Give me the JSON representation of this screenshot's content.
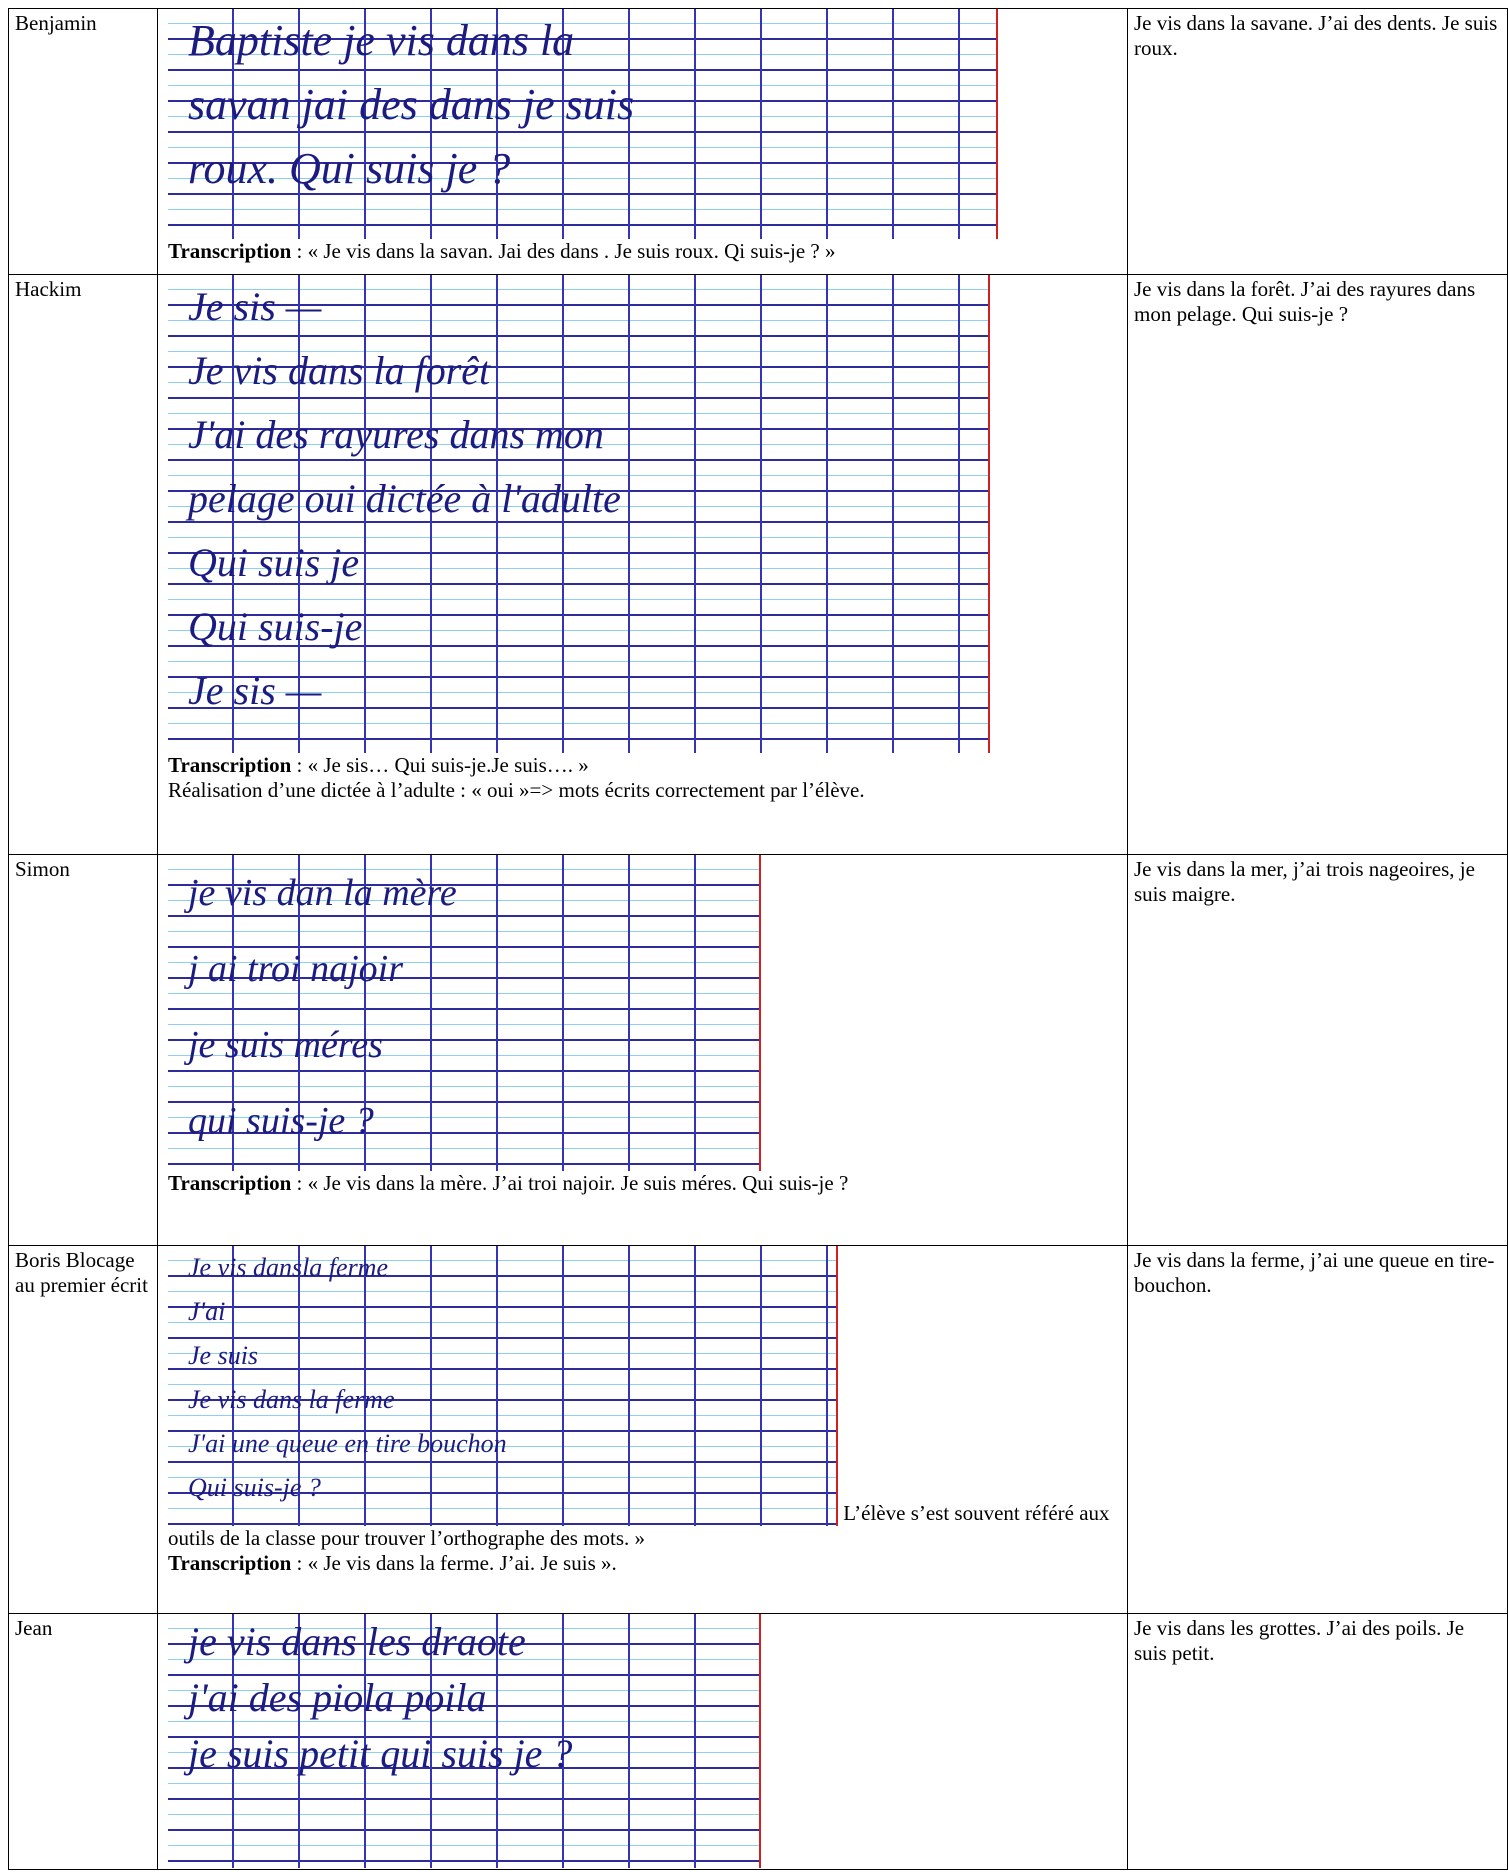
{
  "table": {
    "rows": [
      {
        "name": "Benjamin",
        "sketch": [
          "Baptiste je vis dans la",
          "savan jai des dans je suis",
          "roux. Qui suis je ?"
        ],
        "after": null,
        "notes": [
          {
            "bold": "Transcription",
            "text": " : « Je vis dans la savan. Jai des dans . Je suis roux. Qi suis-je ? »"
          }
        ],
        "response": "Je vis dans la savane. J’ai des dents. Je suis roux."
      },
      {
        "name": "Hackim",
        "sketch": [
          "Je sis —",
          "Je vis dans la forêt",
          "J'ai des rayures dans mon",
          "pelage   oui dictée à l'adulte",
          "Qui suis je",
          "Qui suis-je",
          "Je sis —"
        ],
        "after": null,
        "notes": [
          {
            "bold": "Transcription",
            "text": " : « Je sis… Qui suis-je.Je suis…. »"
          },
          {
            "bold": null,
            "text": "Réalisation d’une dictée à l’adulte : « oui »=> mots écrits correctement par l’élève."
          }
        ],
        "response": "Je vis dans la forêt. J’ai des rayures dans mon pelage. Qui suis-je ?"
      },
      {
        "name": "Simon",
        "sketch": [
          "je vis dan la mère",
          "j ai troi najoir",
          "je suis méres",
          "qui suis-je ?"
        ],
        "after": null,
        "notes": [
          {
            "bold": "Transcription",
            "text": " : « Je vis dans la mère. J’ai troi najoir. Je suis méres. Qui suis-je ?"
          }
        ],
        "response": "Je vis dans la mer, j’ai trois nageoires, je suis maigre."
      },
      {
        "name": "Boris Blocage au premier écrit",
        "sketch": [
          "Je vis dansla ferme",
          "J'ai",
          "Je suis",
          "Je vis dans la ferme",
          "J'ai une queue en tire bouchon",
          "Qui suis-je ?"
        ],
        "after": " L’élève s’est souvent référé aux outils de la classe pour trouver l’orthographe des mots. »",
        "notes": [
          {
            "bold": "Transcription",
            "text": " : « Je vis dans la ferme. J’ai. Je suis »."
          }
        ],
        "response": "Je vis dans la ferme, j’ai une queue en tire-bouchon."
      },
      {
        "name": "Jean",
        "sketch": [
          "je vis dans les draote",
          "j'ai des piola poila",
          "je suis petit  qui suis je ?"
        ],
        "after": null,
        "notes": [],
        "response": "Je vis dans les grottes. J’ai des poils. Je suis petit."
      }
    ]
  }
}
